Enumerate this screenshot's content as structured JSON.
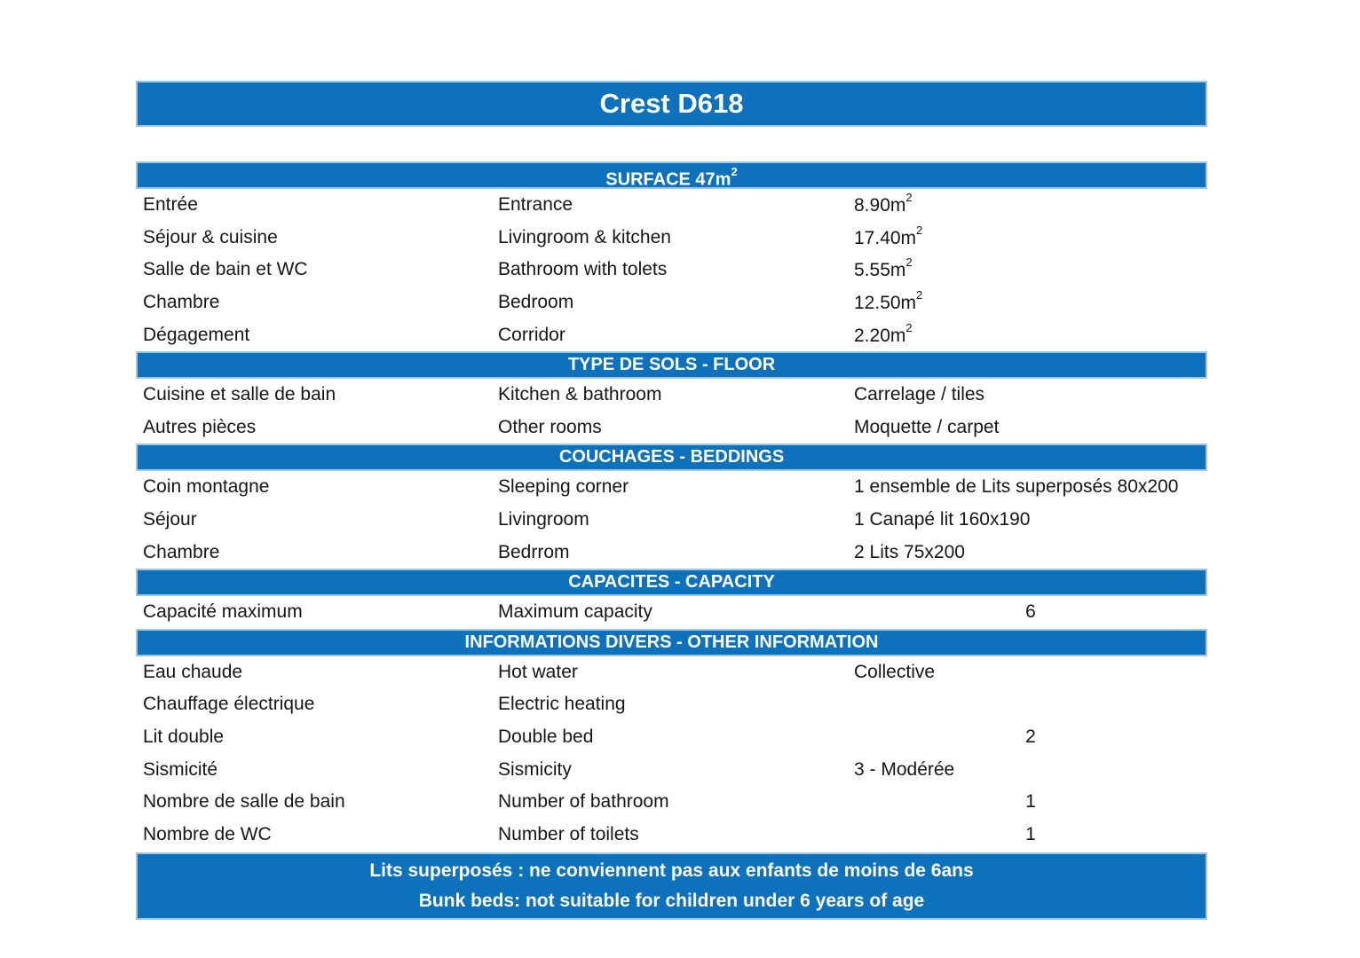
{
  "colors": {
    "accent": "#0e71bc",
    "band_border": "#9cc7e8",
    "body_text": "#161616",
    "header_text": "#ffffff"
  },
  "title": "Crest D618",
  "sections": [
    {
      "header": "SURFACE 47m",
      "header_sup": "2",
      "rows": [
        {
          "fr": "Entrée",
          "en": "Entrance",
          "value": "8.90m",
          "sup": "2"
        },
        {
          "fr": "Séjour & cuisine",
          "en": "Livingroom & kitchen",
          "value": "17.40m",
          "sup": "2"
        },
        {
          "fr": "Salle de bain et WC",
          "en": "Bathroom with tolets",
          "value": "5.55m",
          "sup": "2"
        },
        {
          "fr": "Chambre",
          "en": "Bedroom",
          "value": "12.50m",
          "sup": "2"
        },
        {
          "fr": "Dégagement",
          "en": "Corridor",
          "value": "2.20m",
          "sup": "2"
        }
      ]
    },
    {
      "header": "TYPE DE SOLS - FLOOR",
      "rows": [
        {
          "fr": "Cuisine et salle de bain",
          "en": "Kitchen & bathroom",
          "value": "Carrelage / tiles"
        },
        {
          "fr": "Autres pièces",
          "en": "Other rooms",
          "value": "Moquette / carpet"
        }
      ]
    },
    {
      "header": "COUCHAGES - BEDDINGS",
      "rows": [
        {
          "fr": "Coin montagne",
          "en": "Sleeping corner",
          "value": "1 ensemble de Lits superposés 80x200"
        },
        {
          "fr": "Séjour",
          "en": "Livingroom",
          "value": "1 Canapé lit 160x190"
        },
        {
          "fr": "Chambre",
          "en": "Bedrrom",
          "value": "2 Lits 75x200"
        }
      ]
    },
    {
      "header": "CAPACITES - CAPACITY",
      "rows": [
        {
          "fr": "Capacité maximum",
          "en": "Maximum capacity",
          "value": "6"
        }
      ]
    },
    {
      "header": "INFORMATIONS DIVERS - OTHER INFORMATION",
      "rows": [
        {
          "fr": "Eau chaude",
          "en": "Hot water",
          "value": "Collective"
        },
        {
          "fr": "Chauffage électrique",
          "en": "Electric heating",
          "value": ""
        },
        {
          "fr": "Lit double",
          "en": "Double bed",
          "value": "2"
        },
        {
          "fr": "Sismicité",
          "en": "Sismicity",
          "value": "3 - Modérée"
        },
        {
          "fr": "Nombre de salle de bain",
          "en": "Number of bathroom",
          "value": "1"
        },
        {
          "fr": "Nombre de WC",
          "en": "Number of toilets",
          "value": "1"
        }
      ]
    }
  ],
  "footer": {
    "line1": "Lits superposés : ne conviennent pas aux enfants de moins de 6ans",
    "line2": "Bunk beds: not suitable for children under 6 years of age"
  }
}
